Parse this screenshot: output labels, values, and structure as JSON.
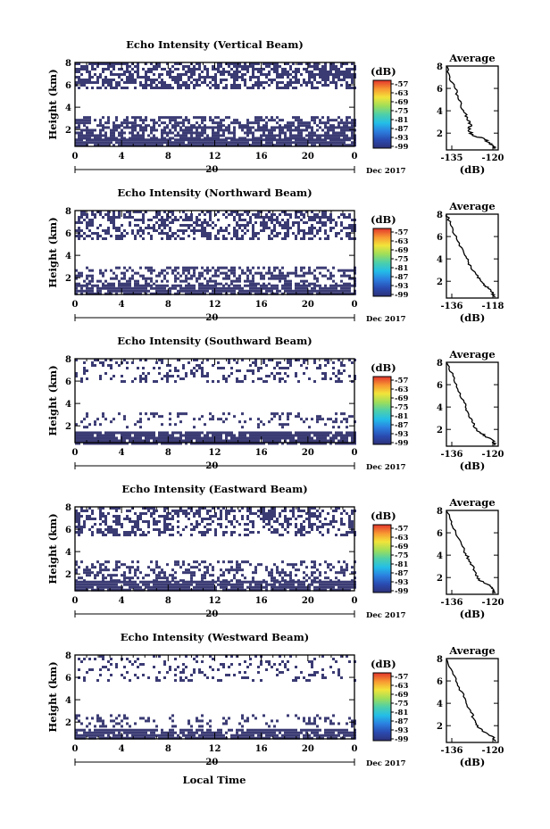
{
  "figure": {
    "xlabel": "Local Time",
    "date_label": "Dec 2017",
    "day_label": "20",
    "colorbar_title": "(dB)",
    "colorbar_ticks": [
      "-57",
      "-63",
      "-69",
      "-75",
      "-81",
      "-87",
      "-93",
      "-99"
    ],
    "avg_title": "Average",
    "avg_xlabel": "(dB)",
    "colormap_note": "jet",
    "colors": {
      "echo": "#3b3b74",
      "curve": "#000000"
    }
  },
  "chart_data": [
    {
      "type": "heatmap",
      "title": "Echo Intensity (Vertical Beam)",
      "ylabel": "Height (km)",
      "x_ticks": [
        "0",
        "4",
        "8",
        "12",
        "16",
        "20",
        "0"
      ],
      "y_ticks": [
        "2",
        "4",
        "6",
        "8"
      ],
      "ylim": [
        0.5,
        8
      ],
      "bands": [
        {
          "from": 0.5,
          "to": 1.2,
          "density": 0.92
        },
        {
          "from": 1.2,
          "to": 2.3,
          "density": 0.7
        },
        {
          "from": 2.3,
          "to": 3.2,
          "density": 0.55
        },
        {
          "from": 5.8,
          "to": 8,
          "density": 0.6
        }
      ],
      "avg_profile": {
        "xlim": [
          -135,
          -120
        ],
        "x_ticks": [
          "-135",
          "-120"
        ],
        "y_ticks": [
          "2",
          "4",
          "6",
          "8"
        ],
        "ylim": [
          0.5,
          8
        ],
        "points": [
          [
            -121,
            0.6
          ],
          [
            -121.5,
            0.9
          ],
          [
            -123,
            1.2
          ],
          [
            -124,
            1.5
          ],
          [
            -127.5,
            1.8
          ],
          [
            -128.5,
            2.3
          ],
          [
            -128,
            2.8
          ],
          [
            -129,
            3.3
          ],
          [
            -130,
            4.0
          ],
          [
            -131.5,
            5.0
          ],
          [
            -132.5,
            6.0
          ],
          [
            -134,
            7.0
          ],
          [
            -135,
            8.0
          ]
        ]
      }
    },
    {
      "type": "heatmap",
      "title": "Echo Intensity (Northward Beam)",
      "ylabel": "Height (km)",
      "x_ticks": [
        "0",
        "4",
        "8",
        "12",
        "16",
        "20",
        "0"
      ],
      "y_ticks": [
        "2",
        "4",
        "6",
        "8"
      ],
      "ylim": [
        0.5,
        8
      ],
      "bands": [
        {
          "from": 0.5,
          "to": 1.4,
          "density": 0.88
        },
        {
          "from": 1.4,
          "to": 3.0,
          "density": 0.45
        },
        {
          "from": 5.5,
          "to": 8,
          "density": 0.45
        }
      ],
      "avg_profile": {
        "xlim": [
          -136,
          -118
        ],
        "x_ticks": [
          "-136",
          "-118"
        ],
        "y_ticks": [
          "2",
          "4",
          "6",
          "8"
        ],
        "ylim": [
          0.5,
          8
        ],
        "points": [
          [
            -119,
            0.6
          ],
          [
            -120,
            0.9
          ],
          [
            -120.5,
            1.2
          ],
          [
            -122.5,
            1.6
          ],
          [
            -124,
            2.0
          ],
          [
            -125,
            2.4
          ],
          [
            -127,
            3.0
          ],
          [
            -128.5,
            3.8
          ],
          [
            -130,
            4.6
          ],
          [
            -132.5,
            5.8
          ],
          [
            -134.5,
            7.0
          ],
          [
            -136,
            8.0
          ]
        ]
      }
    },
    {
      "type": "heatmap",
      "title": "Echo Intensity (Southward Beam)",
      "ylabel": "Height (km)",
      "x_ticks": [
        "0",
        "4",
        "8",
        "12",
        "16",
        "20",
        "0"
      ],
      "y_ticks": [
        "2",
        "4",
        "6",
        "8"
      ],
      "ylim": [
        0.5,
        8
      ],
      "bands": [
        {
          "from": 0.5,
          "to": 1.5,
          "density": 0.9
        },
        {
          "from": 2.0,
          "to": 3.2,
          "density": 0.2
        },
        {
          "from": 6.0,
          "to": 8,
          "density": 0.22
        }
      ],
      "avg_profile": {
        "xlim": [
          -136,
          -120
        ],
        "x_ticks": [
          "-136",
          "-120"
        ],
        "y_ticks": [
          "2",
          "4",
          "6",
          "8"
        ],
        "ylim": [
          0.5,
          8
        ],
        "points": [
          [
            -121,
            0.6
          ],
          [
            -121.5,
            1.0
          ],
          [
            -124,
            1.4
          ],
          [
            -126,
            1.8
          ],
          [
            -127.5,
            2.2
          ],
          [
            -128,
            2.8
          ],
          [
            -129.5,
            3.6
          ],
          [
            -130.5,
            4.4
          ],
          [
            -132.5,
            5.6
          ],
          [
            -134,
            6.8
          ],
          [
            -136,
            8.0
          ]
        ]
      }
    },
    {
      "type": "heatmap",
      "title": "Echo Intensity (Eastward Beam)",
      "ylabel": "Height (km)",
      "x_ticks": [
        "0",
        "4",
        "8",
        "12",
        "16",
        "20",
        "0"
      ],
      "y_ticks": [
        "2",
        "4",
        "6",
        "8"
      ],
      "ylim": [
        0.5,
        8
      ],
      "bands": [
        {
          "from": 0.5,
          "to": 1.4,
          "density": 0.88
        },
        {
          "from": 1.4,
          "to": 3.2,
          "density": 0.4
        },
        {
          "from": 5.6,
          "to": 8,
          "density": 0.42
        }
      ],
      "avg_profile": {
        "xlim": [
          -136,
          -120
        ],
        "x_ticks": [
          "-136",
          "-120"
        ],
        "y_ticks": [
          "2",
          "4",
          "6",
          "8"
        ],
        "ylim": [
          0.5,
          8
        ],
        "points": [
          [
            -121,
            0.6
          ],
          [
            -121.5,
            0.9
          ],
          [
            -122.5,
            1.3
          ],
          [
            -125.5,
            1.7
          ],
          [
            -127,
            2.2
          ],
          [
            -127.5,
            2.8
          ],
          [
            -129,
            3.6
          ],
          [
            -130.5,
            4.4
          ],
          [
            -132.5,
            5.6
          ],
          [
            -134.5,
            6.8
          ],
          [
            -136,
            8.0
          ]
        ]
      }
    },
    {
      "type": "heatmap",
      "title": "Echo Intensity (Westward Beam)",
      "ylabel": "Height (km)",
      "x_ticks": [
        "0",
        "4",
        "8",
        "12",
        "16",
        "20",
        "0"
      ],
      "y_ticks": [
        "2",
        "4",
        "6",
        "8"
      ],
      "ylim": [
        0.5,
        8
      ],
      "bands": [
        {
          "from": 0.5,
          "to": 1.4,
          "density": 0.85
        },
        {
          "from": 1.7,
          "to": 2.7,
          "density": 0.22
        },
        {
          "from": 5.8,
          "to": 8,
          "density": 0.18
        }
      ],
      "avg_profile": {
        "xlim": [
          -136,
          -120
        ],
        "x_ticks": [
          "-136",
          "-120"
        ],
        "y_ticks": [
          "2",
          "4",
          "6",
          "8"
        ],
        "ylim": [
          0.5,
          8
        ],
        "points": [
          [
            -121,
            0.6
          ],
          [
            -121.5,
            1.0
          ],
          [
            -124,
            1.4
          ],
          [
            -126,
            1.8
          ],
          [
            -127,
            2.4
          ],
          [
            -128.5,
            3.2
          ],
          [
            -130,
            4.2
          ],
          [
            -132,
            5.4
          ],
          [
            -134,
            6.6
          ],
          [
            -136,
            8.0
          ]
        ]
      }
    }
  ]
}
